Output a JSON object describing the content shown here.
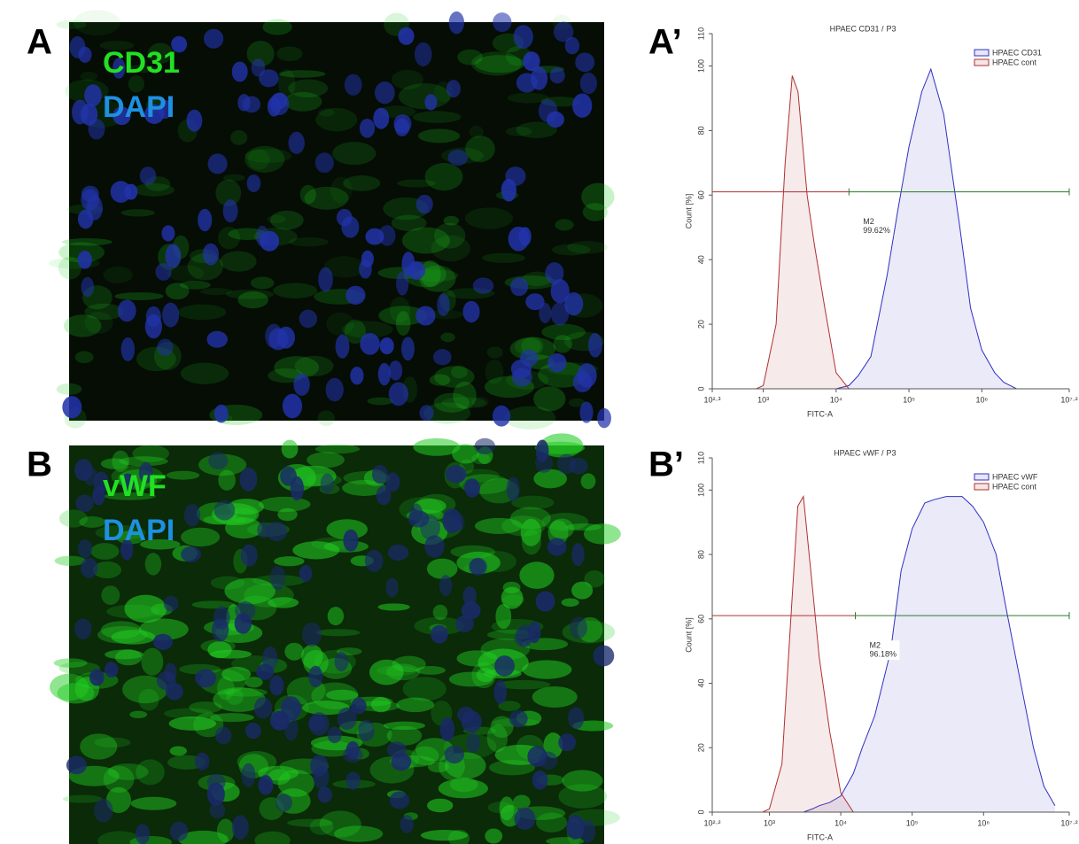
{
  "panels": [
    {
      "label": "A",
      "stains": [
        "CD31",
        "DAPI"
      ]
    },
    {
      "label": "B",
      "stains": [
        "vWF",
        "DAPI"
      ]
    }
  ],
  "chart_data": [
    {
      "type": "area",
      "panel_label": "A’",
      "title": "HPAEC CD31 /",
      "gate": "P3",
      "x_label": "FITC-A",
      "y_label": "Count [%]",
      "log_x": true,
      "xlim": [
        199.5,
        15848932
      ],
      "ylim": [
        0,
        110
      ],
      "xticks": [
        {
          "value": 199.5,
          "label": "10²·³"
        },
        {
          "value": 1000,
          "label": "10³"
        },
        {
          "value": 10000,
          "label": "10⁴"
        },
        {
          "value": 100000,
          "label": "10⁵"
        },
        {
          "value": 1000000,
          "label": "10⁶"
        },
        {
          "value": 15848932,
          "label": "10⁷·²"
        }
      ],
      "yticks": [
        0,
        20,
        40,
        60,
        80,
        100,
        110
      ],
      "x": [
        300,
        500,
        800,
        1000,
        1500,
        2000,
        2500,
        3000,
        4000,
        5000,
        7000,
        10000,
        15000,
        20000,
        30000,
        50000,
        70000,
        100000,
        150000,
        200000,
        300000,
        500000,
        700000,
        1000000,
        1500000,
        2000000,
        3000000,
        5000000
      ],
      "series": [
        {
          "name": "HPAEC CD31",
          "color": "#3030c0",
          "values": [
            0,
            0,
            0,
            0,
            0,
            0,
            0,
            0,
            0,
            0,
            0,
            0,
            1,
            4,
            10,
            35,
            55,
            75,
            92,
            99,
            85,
            50,
            25,
            12,
            5,
            2,
            0,
            0
          ]
        },
        {
          "name": "HPAEC cont",
          "color": "#b03030",
          "values": [
            0,
            0,
            0,
            1,
            20,
            70,
            97,
            92,
            60,
            45,
            25,
            5,
            0,
            0,
            0,
            0,
            0,
            0,
            0,
            0,
            0,
            0,
            0,
            0,
            0,
            0,
            0,
            0
          ]
        }
      ],
      "marker": {
        "x": 15000,
        "y": 61,
        "name": "M2",
        "label": "99.62%"
      }
    },
    {
      "type": "area",
      "panel_label": "B’",
      "title": "HPAEC vWF /",
      "gate": "P3",
      "x_label": "FITC-A",
      "y_label": "Count [%]",
      "log_x": true,
      "xlim": [
        158.5,
        15848932
      ],
      "ylim": [
        0,
        110
      ],
      "xticks": [
        {
          "value": 158.5,
          "label": "10²·²"
        },
        {
          "value": 1000,
          "label": "10³"
        },
        {
          "value": 10000,
          "label": "10⁴"
        },
        {
          "value": 100000,
          "label": "10⁵"
        },
        {
          "value": 1000000,
          "label": "10⁶"
        },
        {
          "value": 15848932,
          "label": "10⁷·²"
        }
      ],
      "yticks": [
        0,
        20,
        40,
        60,
        80,
        100,
        110
      ],
      "x": [
        300,
        500,
        800,
        1000,
        1500,
        2000,
        2500,
        3000,
        4000,
        5000,
        7000,
        10000,
        15000,
        20000,
        30000,
        50000,
        70000,
        100000,
        150000,
        200000,
        300000,
        500000,
        700000,
        1000000,
        1500000,
        2000000,
        3000000,
        5000000,
        7000000,
        10000000
      ],
      "series": [
        {
          "name": "HPAEC vWF",
          "color": "#3030c0",
          "values": [
            0,
            0,
            0,
            0,
            0,
            0,
            0,
            0,
            1,
            2,
            3,
            5,
            12,
            20,
            30,
            50,
            75,
            88,
            96,
            97,
            98,
            98,
            95,
            90,
            80,
            65,
            45,
            20,
            8,
            2
          ]
        },
        {
          "name": "HPAEC cont",
          "color": "#b03030",
          "values": [
            0,
            0,
            0,
            1,
            15,
            60,
            95,
            98,
            70,
            48,
            25,
            6,
            0,
            0,
            0,
            0,
            0,
            0,
            0,
            0,
            0,
            0,
            0,
            0,
            0,
            0,
            0,
            0,
            0,
            0
          ]
        }
      ],
      "marker": {
        "x": 16000,
        "y": 61,
        "name": "M2",
        "label": "96.18%"
      }
    }
  ]
}
